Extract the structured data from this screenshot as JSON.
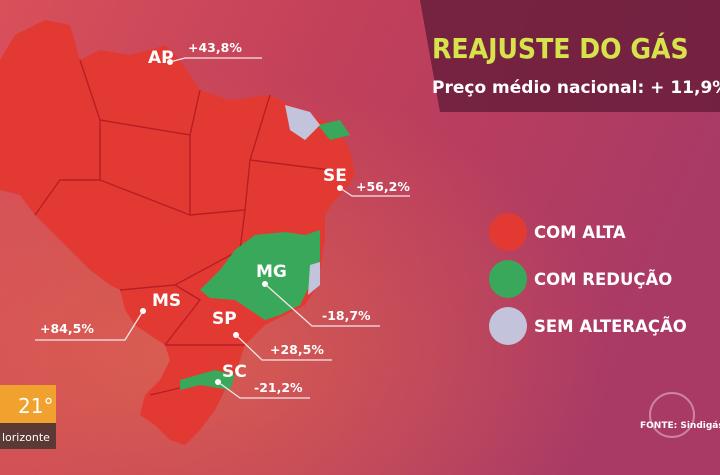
{
  "header": {
    "title": "REAJUSTE DO GÁS",
    "subtitle": "Preço médio nacional: + 11,9%"
  },
  "legend": {
    "items": [
      {
        "label": "COM ALTA",
        "color": "#e23a33"
      },
      {
        "label": "COM REDUÇÃO",
        "color": "#3aa85a"
      },
      {
        "label": "SEM ALTERAÇÃO",
        "color": "#c3c4dc"
      }
    ]
  },
  "states": [
    {
      "abbr": "AP",
      "change": "+43,8%"
    },
    {
      "abbr": "SE",
      "change": "+56,2%"
    },
    {
      "abbr": "MG",
      "change": "-18,7%"
    },
    {
      "abbr": "MS",
      "change": "+84,5%"
    },
    {
      "abbr": "SP",
      "change": "+28,5%"
    },
    {
      "abbr": "SC",
      "change": "-21,2%"
    }
  ],
  "source": "FONTE: Sindigás",
  "weather": {
    "temperature": "21°",
    "city": "lorizonte"
  }
}
